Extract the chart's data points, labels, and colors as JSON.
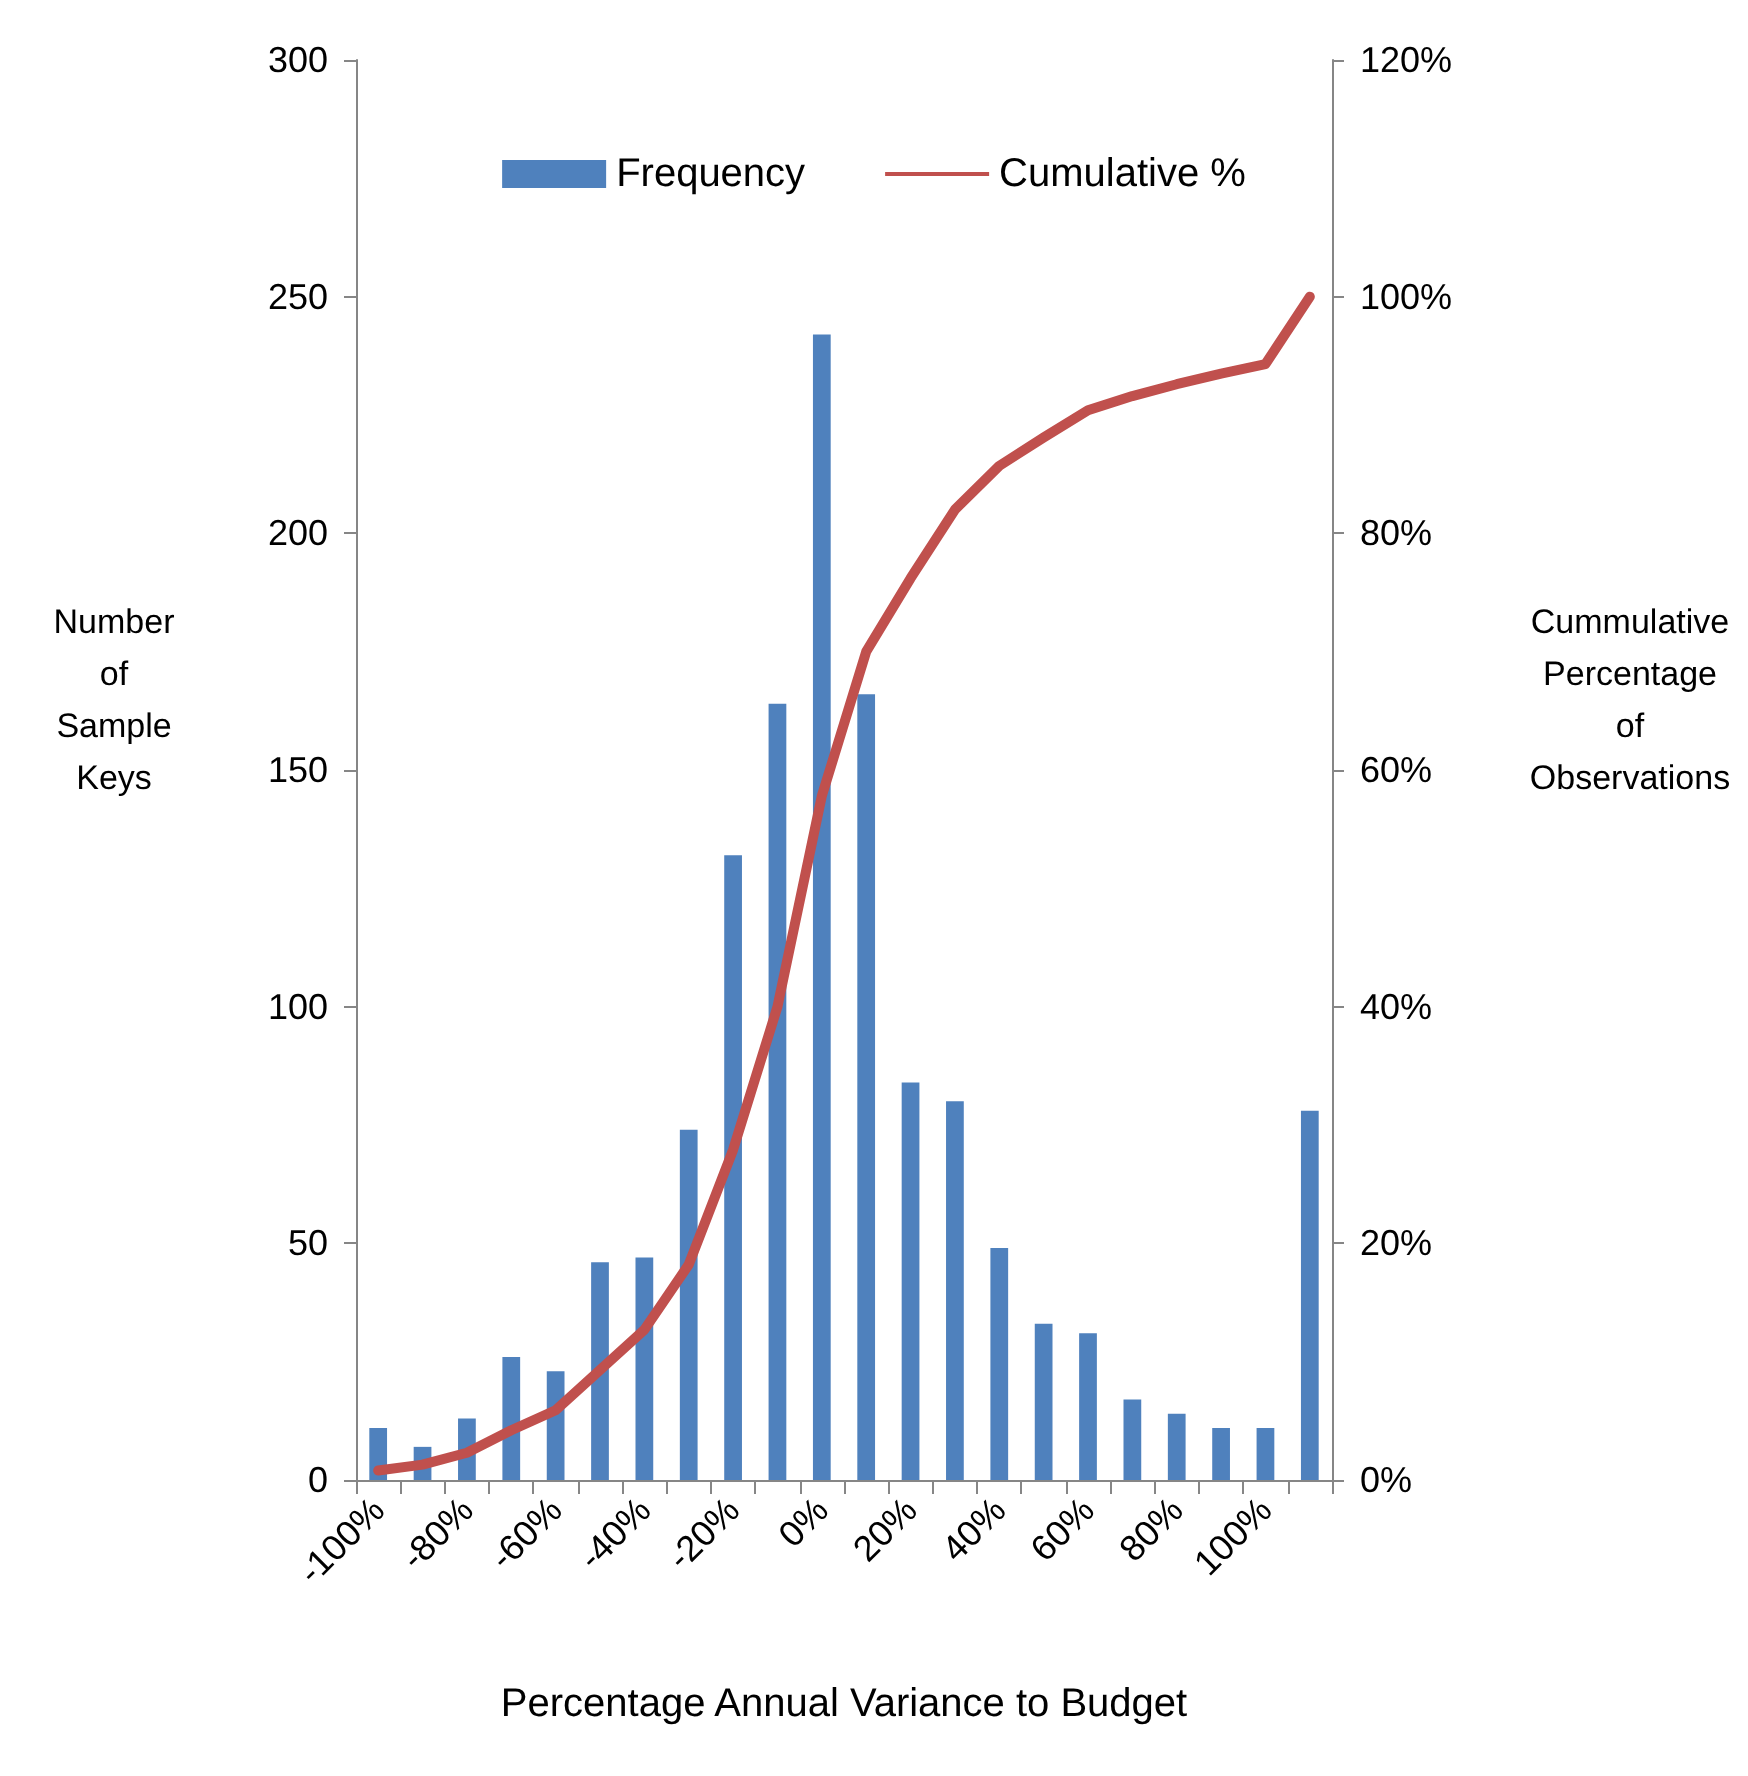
{
  "chart_data": {
    "type": "bar",
    "xlabel": "Percentage Annual Variance to Budget",
    "ylabel": "Number of Sample Keys",
    "y2label": "Cummulative Percentage of Observations",
    "categories": [
      "-100%",
      null,
      "-80%",
      null,
      "-60%",
      null,
      "-40%",
      null,
      "-20%",
      null,
      "0%",
      null,
      "20%",
      null,
      "40%",
      null,
      "60%",
      null,
      "80%",
      null,
      "100%",
      null
    ],
    "series": [
      {
        "name": "Frequency",
        "color": "#4f81bd",
        "values": [
          11,
          7,
          13,
          26,
          23,
          46,
          47,
          74,
          132,
          164,
          242,
          166,
          84,
          80,
          49,
          33,
          31,
          17,
          14,
          11,
          11,
          78
        ]
      },
      {
        "name": "Cumulative %",
        "type": "line",
        "axis": "y2",
        "color": "#c0504d",
        "marker": "none",
        "line_style": "solid",
        "values": [
          0.8,
          1.3,
          2.3,
          4.2,
          5.9,
          9.3,
          12.7,
          18.2,
          27.9,
          40,
          57.8,
          70,
          76.2,
          82,
          85.7,
          88.1,
          90.4,
          91.6,
          92.6,
          93.5,
          94.3,
          100
        ]
      }
    ],
    "ylim": [
      0,
      300
    ],
    "yticks": [
      0,
      50,
      100,
      150,
      200,
      250,
      300
    ],
    "y2lim": [
      0,
      120
    ],
    "y2ticks": [
      {
        "value": 0,
        "label": "0%"
      },
      {
        "value": 20,
        "label": "20%"
      },
      {
        "value": 40,
        "label": "40%"
      },
      {
        "value": 60,
        "label": "60%"
      },
      {
        "value": 80,
        "label": "80%"
      },
      {
        "value": 100,
        "label": "100%"
      },
      {
        "value": 120,
        "label": "120%"
      }
    ],
    "grid": false,
    "legend": "top"
  }
}
